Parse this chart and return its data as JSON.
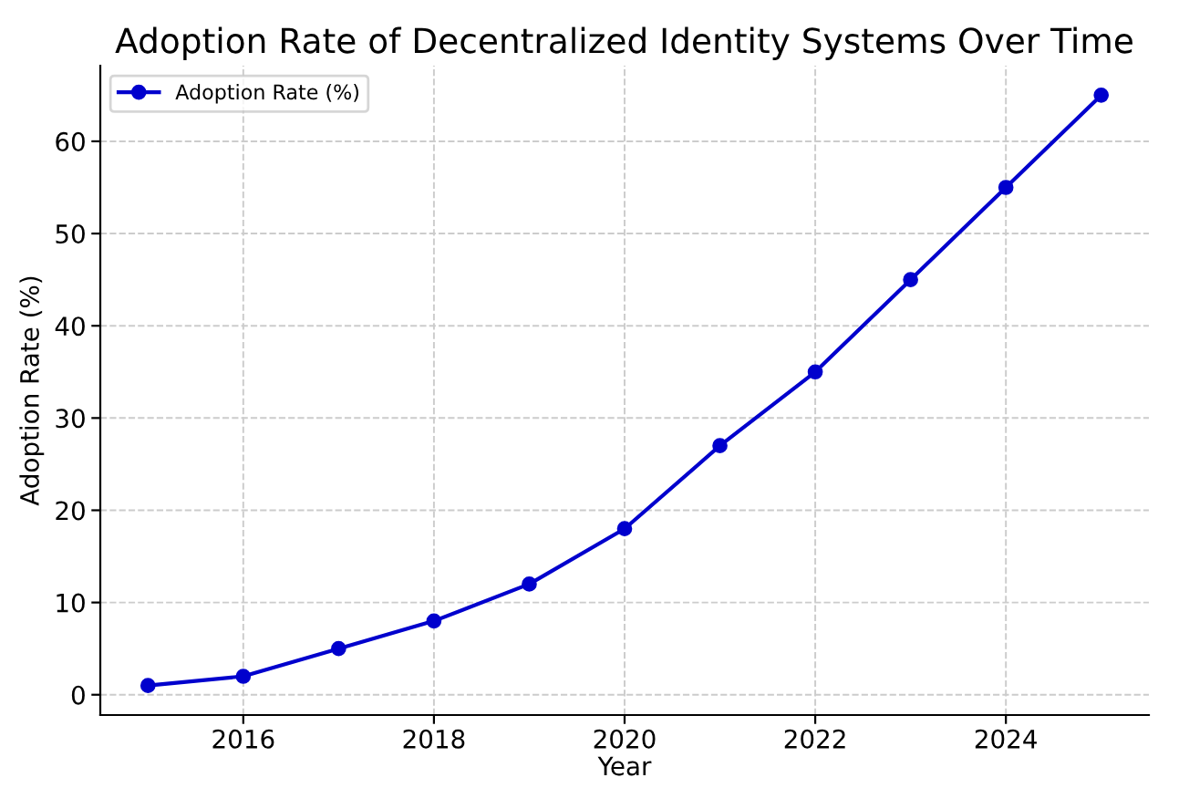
{
  "chart_data": {
    "type": "line",
    "title": "Adoption Rate of Decentralized Identity Systems Over Time",
    "xlabel": "Year",
    "ylabel": "Adoption Rate (%)",
    "x": [
      2015,
      2016,
      2017,
      2018,
      2019,
      2020,
      2021,
      2022,
      2023,
      2024,
      2025
    ],
    "series": [
      {
        "name": "Adoption Rate (%)",
        "color": "#0000cd",
        "values": [
          1,
          2,
          5,
          8,
          12,
          18,
          27,
          35,
          45,
          55,
          65
        ]
      }
    ],
    "xlim": [
      2014.5,
      2025.5
    ],
    "xticks": [
      2016,
      2018,
      2020,
      2022,
      2024
    ],
    "ylim": [
      -2.2,
      68.2
    ],
    "yticks": [
      0,
      10,
      20,
      30,
      40,
      50,
      60
    ],
    "grid": true,
    "legend": "top left",
    "marker": "circle",
    "line_style": "solid"
  }
}
